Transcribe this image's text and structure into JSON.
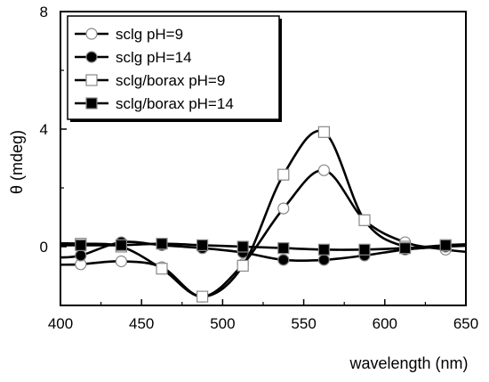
{
  "chart_data": {
    "type": "line",
    "title": "",
    "xlabel": "wavelength (nm)",
    "ylabel": "θ (mdeg)",
    "xlim": [
      400,
      650
    ],
    "ylim": [
      -2,
      8
    ],
    "x_ticks": [
      400,
      450,
      500,
      550,
      600,
      650
    ],
    "y_ticks": [
      0,
      4,
      8
    ],
    "legend_position": "top-left",
    "grid": false,
    "series": [
      {
        "name": "sclg pH=9",
        "marker": "open-circle",
        "color": "#000000",
        "x": [
          412.5,
          437.5,
          462.5,
          487.5,
          512.5,
          537.5,
          562.5,
          587.5,
          612.5,
          637.5
        ],
        "y": [
          -0.6,
          -0.5,
          -0.7,
          -1.7,
          -0.6,
          1.3,
          2.6,
          0.9,
          0.15,
          -0.1
        ]
      },
      {
        "name": "sclg pH=14",
        "marker": "filled-circle",
        "color": "#000000",
        "x": [
          412.5,
          437.5,
          462.5,
          487.5,
          512.5,
          537.5,
          562.5,
          587.5,
          612.5,
          637.5
        ],
        "y": [
          -0.3,
          0.15,
          0.05,
          -0.05,
          -0.2,
          -0.45,
          -0.45,
          -0.3,
          -0.1,
          0.0
        ]
      },
      {
        "name": "sclg/borax pH=9",
        "marker": "open-square",
        "color": "#000000",
        "x": [
          412.5,
          437.5,
          462.5,
          487.5,
          512.5,
          537.5,
          562.5,
          587.5,
          612.5,
          637.5
        ],
        "y": [
          0.1,
          0.0,
          -0.75,
          -1.7,
          -0.65,
          2.45,
          3.9,
          0.9,
          0.0,
          0.05
        ]
      },
      {
        "name": "sclg/borax pH=14",
        "marker": "filled-square",
        "color": "#000000",
        "x": [
          412.5,
          437.5,
          462.5,
          487.5,
          512.5,
          537.5,
          562.5,
          587.5,
          612.5,
          637.5
        ],
        "y": [
          0.05,
          0.05,
          0.1,
          0.05,
          0.0,
          -0.05,
          -0.1,
          -0.1,
          -0.05,
          0.05
        ]
      }
    ]
  }
}
